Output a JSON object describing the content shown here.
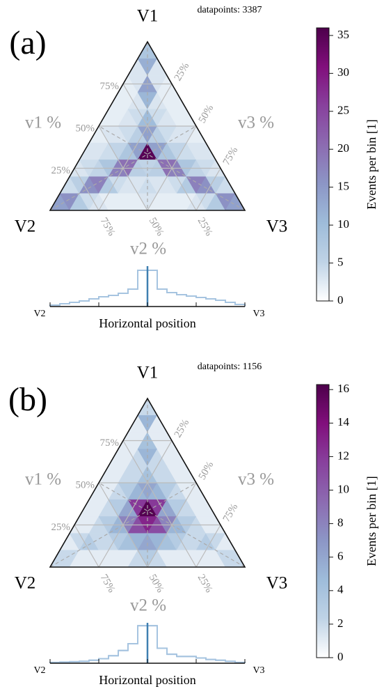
{
  "chart_data": [
    {
      "type": "ternary",
      "panel_label": "(a)",
      "annotation": "datapoints: 3387",
      "vertices": [
        "V1",
        "V2",
        "V3"
      ],
      "axes": [
        {
          "label": "v1 %",
          "ticks": [
            {
              "value": 25,
              "label": "25%"
            },
            {
              "value": 50,
              "label": "50%"
            },
            {
              "value": 75,
              "label": "75%"
            }
          ]
        },
        {
          "label": "v2 %",
          "ticks": [
            {
              "value": 25,
              "label": "25%"
            },
            {
              "value": 50,
              "label": "50%"
            },
            {
              "value": 75,
              "label": "75%"
            }
          ]
        },
        {
          "label": "v3 %",
          "ticks": [
            {
              "value": 25,
              "label": "25%"
            },
            {
              "value": 50,
              "label": "50%"
            },
            {
              "value": 75,
              "label": "75%"
            }
          ]
        }
      ],
      "grid": true,
      "cells": [
        [
          8
        ],
        [
          3,
          12,
          3
        ],
        [
          2,
          3,
          14,
          3,
          2
        ],
        [
          2,
          2,
          3,
          11,
          3,
          2,
          2
        ],
        [
          2,
          2,
          3,
          4,
          10,
          4,
          3,
          2,
          2
        ],
        [
          2,
          3,
          3,
          4,
          6,
          14,
          6,
          4,
          3,
          3,
          2
        ],
        [
          3,
          3,
          4,
          5,
          8,
          14,
          35,
          14,
          8,
          5,
          4,
          3,
          3
        ],
        [
          3,
          4,
          5,
          8,
          18,
          20,
          6,
          5,
          6,
          20,
          18,
          8,
          5,
          4,
          3
        ],
        [
          4,
          6,
          16,
          18,
          7,
          4,
          3,
          3,
          4,
          3,
          3,
          4,
          7,
          18,
          16,
          6,
          4
        ],
        [
          14,
          16,
          7,
          4,
          3,
          2,
          2,
          2,
          2,
          3,
          2,
          2,
          2,
          2,
          3,
          4,
          7,
          16,
          14
        ]
      ],
      "colormap": [
        "#ffffff",
        "#bfd3e6",
        "#9ebcda",
        "#8c96c6",
        "#8c6bb1",
        "#88419d",
        "#810f7c",
        "#4d004b"
      ],
      "colorbar": {
        "label": "Events per bin [1]",
        "lim": [
          0,
          36
        ],
        "ticks": [
          0,
          5,
          10,
          15,
          20,
          25,
          30,
          35
        ]
      },
      "histogram": {
        "label": "Horizontal position",
        "ends": [
          "V2",
          "V3"
        ],
        "ylim": [
          0,
          560
        ],
        "color": "#a6c4e0",
        "marker_color": "#3f7fb0",
        "values": [
          20,
          40,
          60,
          80,
          110,
          140,
          160,
          190,
          250,
          520,
          520,
          250,
          200,
          170,
          150,
          130,
          110,
          90,
          60,
          30
        ]
      }
    },
    {
      "type": "ternary",
      "panel_label": "(b)",
      "annotation": "datapoints: 1156",
      "vertices": [
        "V1",
        "V2",
        "V3"
      ],
      "axes": [
        {
          "label": "v1 %",
          "ticks": [
            {
              "value": 25,
              "label": "25%"
            },
            {
              "value": 50,
              "label": "50%"
            },
            {
              "value": 75,
              "label": "75%"
            }
          ]
        },
        {
          "label": "v2 %",
          "ticks": [
            {
              "value": 25,
              "label": "25%"
            },
            {
              "value": 50,
              "label": "50%"
            },
            {
              "value": 75,
              "label": "75%"
            }
          ]
        },
        {
          "label": "v3 %",
          "ticks": [
            {
              "value": 25,
              "label": "25%"
            },
            {
              "value": 50,
              "label": "50%"
            },
            {
              "value": 75,
              "label": "75%"
            }
          ]
        }
      ],
      "grid": true,
      "cells": [
        [
          2
        ],
        [
          1,
          5,
          1
        ],
        [
          1,
          1,
          4,
          1,
          1
        ],
        [
          1,
          1,
          2,
          5,
          2,
          1,
          1
        ],
        [
          1,
          1,
          2,
          2,
          4,
          2,
          2,
          1,
          1
        ],
        [
          1,
          1,
          2,
          3,
          5,
          6,
          5,
          3,
          2,
          1,
          1
        ],
        [
          1,
          1,
          2,
          3,
          6,
          12,
          16,
          12,
          6,
          3,
          2,
          1,
          1
        ],
        [
          1,
          1,
          2,
          3,
          5,
          8,
          11,
          13,
          11,
          8,
          5,
          3,
          2,
          1,
          1
        ],
        [
          1,
          2,
          3,
          2,
          2,
          3,
          4,
          5,
          6,
          5,
          4,
          3,
          2,
          2,
          3,
          2,
          1
        ],
        [
          2,
          2,
          1,
          1,
          1,
          1,
          1,
          1,
          2,
          3,
          2,
          1,
          1,
          1,
          1,
          1,
          1,
          2,
          2
        ]
      ],
      "colormap": [
        "#ffffff",
        "#bfd3e6",
        "#9ebcda",
        "#8c96c6",
        "#8c6bb1",
        "#88419d",
        "#810f7c",
        "#4d004b"
      ],
      "colorbar": {
        "label": "Events per bin [1]",
        "lim": [
          0,
          16.3
        ],
        "ticks": [
          0,
          2,
          4,
          6,
          8,
          10,
          12,
          14,
          16
        ]
      },
      "histogram": {
        "label": "Horizontal position",
        "ends": [
          "V2",
          "V3"
        ],
        "ylim": [
          0,
          520
        ],
        "color": "#a6c4e0",
        "marker_color": "#3f7fb0",
        "values": [
          10,
          15,
          20,
          25,
          40,
          60,
          100,
          170,
          260,
          500,
          500,
          200,
          120,
          90,
          90,
          70,
          50,
          40,
          25,
          10
        ]
      }
    }
  ]
}
